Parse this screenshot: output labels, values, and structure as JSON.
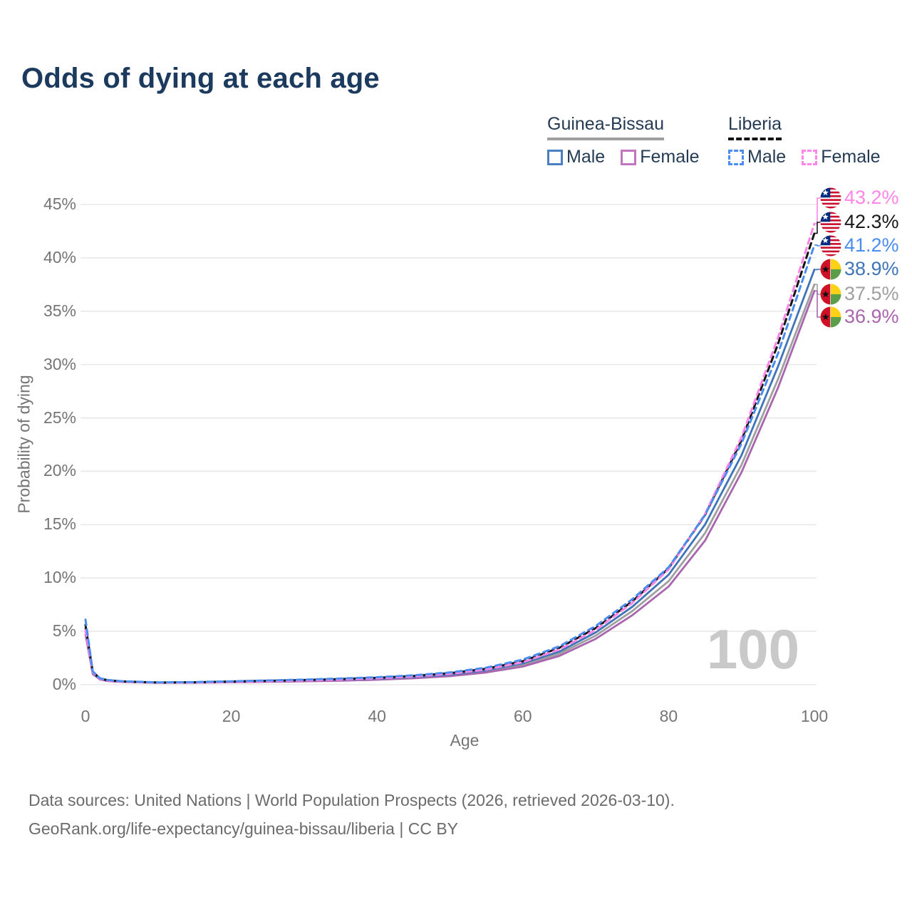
{
  "title": "Odds of dying at each age",
  "legend": {
    "groups": [
      {
        "name": "Guinea-Bissau",
        "line_style": "solid",
        "underline_color": "#9f9f9f",
        "items": [
          {
            "label": "Male",
            "color": "#4a7fc1"
          },
          {
            "label": "Female",
            "color": "#c077c0"
          }
        ]
      },
      {
        "name": "Liberia",
        "line_style": "dashed",
        "underline_color": "#141414",
        "items": [
          {
            "label": "Male",
            "color": "#4a8cf0"
          },
          {
            "label": "Female",
            "color": "#ff85e6"
          }
        ]
      }
    ]
  },
  "chart_data": {
    "type": "line",
    "title": "Odds of dying at each age",
    "xlabel": "Age",
    "ylabel": "Probability of dying",
    "xlim": [
      0,
      100
    ],
    "ylim": [
      0,
      45
    ],
    "grid": "horizontal",
    "x_ticks": [
      "0",
      "20",
      "40",
      "60",
      "80",
      "100"
    ],
    "x_tick_values": [
      0,
      20,
      40,
      60,
      80,
      100
    ],
    "y_ticks": [
      "0%",
      "5%",
      "10%",
      "15%",
      "20%",
      "25%",
      "30%",
      "35%",
      "40%",
      "45%"
    ],
    "y_tick_values": [
      0,
      5,
      10,
      15,
      20,
      25,
      30,
      35,
      40,
      45
    ],
    "watermark_age": "100",
    "ages": [
      0,
      1,
      2,
      3,
      5,
      10,
      15,
      20,
      25,
      30,
      35,
      40,
      45,
      50,
      55,
      60,
      65,
      70,
      75,
      80,
      85,
      90,
      95,
      100
    ],
    "series": [
      {
        "name": "Guinea-Bissau Both sexes",
        "country": "Guinea-Bissau",
        "sex": "Both",
        "color": "#9f9f9f",
        "dashed": false,
        "values": [
          5.0,
          1.05,
          0.5,
          0.38,
          0.28,
          0.19,
          0.2,
          0.25,
          0.3,
          0.36,
          0.43,
          0.52,
          0.66,
          0.88,
          1.25,
          1.85,
          2.9,
          4.6,
          6.9,
          9.7,
          14.2,
          20.6,
          28.6,
          37.5
        ]
      },
      {
        "name": "Guinea-Bissau Female",
        "country": "Guinea-Bissau",
        "sex": "Female",
        "color": "#a965ae",
        "dashed": false,
        "values": [
          4.7,
          1.0,
          0.48,
          0.35,
          0.26,
          0.18,
          0.19,
          0.23,
          0.27,
          0.32,
          0.38,
          0.47,
          0.6,
          0.8,
          1.15,
          1.7,
          2.7,
          4.3,
          6.5,
          9.2,
          13.5,
          19.9,
          27.8,
          36.9
        ]
      },
      {
        "name": "Guinea-Bissau Male",
        "country": "Guinea-Bissau",
        "sex": "Male",
        "color": "#3f74b8",
        "dashed": false,
        "values": [
          5.3,
          1.1,
          0.55,
          0.4,
          0.3,
          0.2,
          0.22,
          0.28,
          0.34,
          0.4,
          0.47,
          0.57,
          0.72,
          0.95,
          1.35,
          2.0,
          3.1,
          4.9,
          7.3,
          10.3,
          15.0,
          21.5,
          29.8,
          38.9
        ]
      },
      {
        "name": "Liberia Both sexes",
        "country": "Liberia",
        "sex": "Both",
        "color": "#141414",
        "dashed": true,
        "values": [
          5.6,
          1.2,
          0.58,
          0.43,
          0.31,
          0.21,
          0.23,
          0.3,
          0.37,
          0.44,
          0.53,
          0.65,
          0.82,
          1.08,
          1.5,
          2.2,
          3.45,
          5.3,
          7.8,
          10.9,
          15.9,
          22.9,
          31.9,
          42.3
        ]
      },
      {
        "name": "Liberia Female",
        "country": "Liberia",
        "sex": "Female",
        "color": "#ff85e6",
        "dashed": true,
        "values": [
          5.1,
          1.15,
          0.55,
          0.4,
          0.3,
          0.2,
          0.21,
          0.27,
          0.33,
          0.4,
          0.49,
          0.6,
          0.77,
          1.02,
          1.42,
          2.1,
          3.3,
          5.15,
          7.65,
          10.8,
          16.0,
          23.2,
          32.5,
          43.2
        ]
      },
      {
        "name": "Liberia Male",
        "country": "Liberia",
        "sex": "Male",
        "color": "#4a8cf0",
        "dashed": true,
        "values": [
          6.1,
          1.25,
          0.6,
          0.45,
          0.33,
          0.22,
          0.25,
          0.32,
          0.4,
          0.48,
          0.58,
          0.7,
          0.88,
          1.15,
          1.6,
          2.35,
          3.6,
          5.5,
          8.0,
          11.0,
          15.9,
          22.6,
          31.0,
          41.2
        ]
      }
    ],
    "end_labels": [
      {
        "text": "43.2%",
        "color": "#ff85e6",
        "flag": "liberia",
        "series_index": 4
      },
      {
        "text": "42.3%",
        "color": "#1a1a1a",
        "flag": "liberia",
        "series_index": 3
      },
      {
        "text": "41.2%",
        "color": "#4a8cf0",
        "flag": "liberia",
        "series_index": 5
      },
      {
        "text": "38.9%",
        "color": "#3f74b8",
        "flag": "guinea-bissau",
        "series_index": 2
      },
      {
        "text": "37.5%",
        "color": "#9f9f9f",
        "flag": "guinea-bissau",
        "series_index": 0
      },
      {
        "text": "36.9%",
        "color": "#a965ae",
        "flag": "guinea-bissau",
        "series_index": 1
      }
    ]
  },
  "footer": {
    "line1": "Data sources: United Nations | World Population Prospects (2026, retrieved 2026-03-10).",
    "line2": "GeoRank.org/life-expectancy/guinea-bissau/liberia | CC BY"
  }
}
